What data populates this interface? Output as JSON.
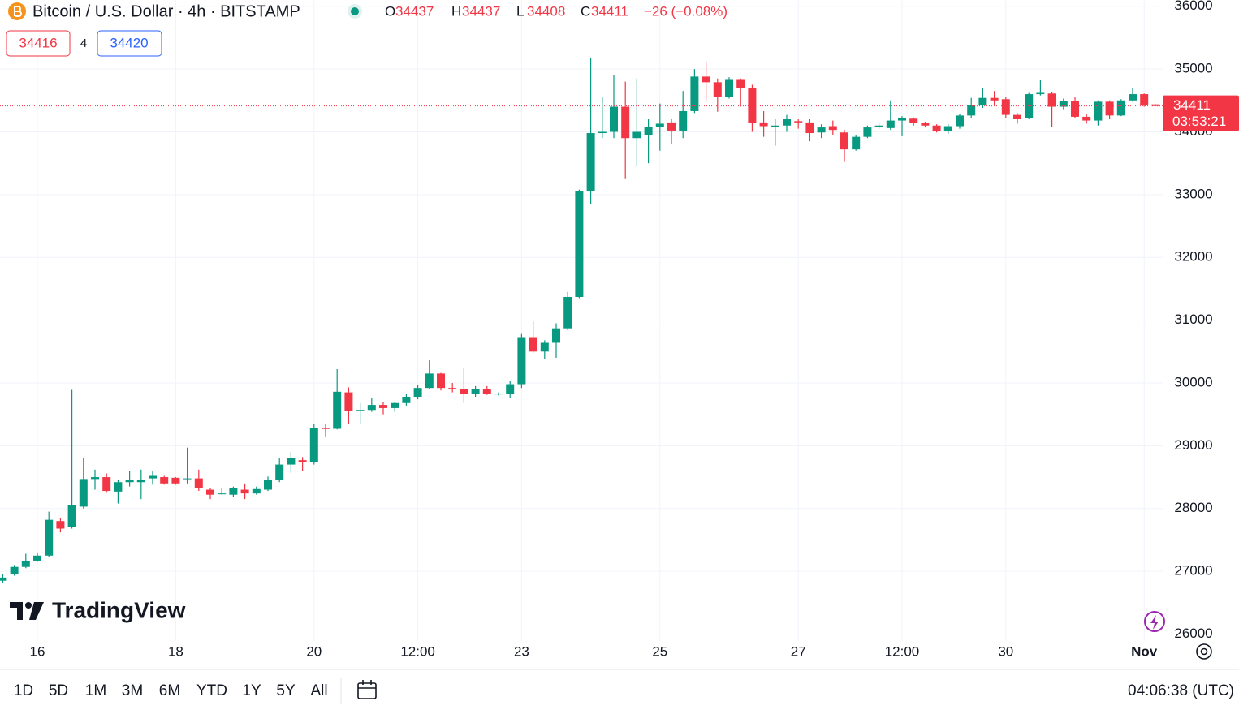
{
  "header": {
    "title": "Bitcoin / U.S. Dollar · 4h · BITSTAMP",
    "ohlc": [
      {
        "label": "O",
        "value": 34437
      },
      {
        "label": "H",
        "value": 34437
      },
      {
        "label": "L",
        "value": 34408
      },
      {
        "label": "C",
        "value": 34411
      }
    ],
    "change": "−26 (−0.08%)",
    "bid": 34416,
    "spread": 4,
    "ask": 34420
  },
  "logo": "TradingView",
  "chart_data": {
    "type": "candlestick",
    "up_color": "#089981",
    "down_color": "#f23645",
    "grid": true,
    "categories": [
      null,
      null,
      null,
      "16",
      null,
      null,
      null,
      null,
      null,
      null,
      null,
      null,
      null,
      null,
      null,
      "18",
      null,
      null,
      null,
      null,
      null,
      null,
      null,
      null,
      null,
      null,
      null,
      "20",
      null,
      null,
      null,
      null,
      null,
      null,
      null,
      null,
      "12:00",
      null,
      null,
      null,
      null,
      null,
      null,
      null,
      null,
      "23",
      null,
      null,
      null,
      null,
      null,
      null,
      null,
      null,
      null,
      null,
      null,
      "25",
      null,
      null,
      null,
      null,
      null,
      null,
      null,
      null,
      null,
      null,
      null,
      "27",
      null,
      null,
      null,
      null,
      null,
      null,
      null,
      null,
      "12:00",
      null,
      null,
      null,
      null,
      null,
      null,
      null,
      null,
      "30",
      null,
      null,
      null,
      null,
      null,
      null,
      null,
      null,
      null,
      null,
      null,
      "Nov",
      null
    ],
    "open": [
      26850,
      26950,
      27070,
      27170,
      27250,
      27800,
      27700,
      28030,
      28470,
      28500,
      28270,
      28420,
      28420,
      28480,
      28500,
      28490,
      28470,
      28480,
      28300,
      28230,
      28220,
      28300,
      28240,
      28300,
      28450,
      28700,
      28770,
      28740,
      29280,
      29270,
      29850,
      29550,
      29570,
      29650,
      29600,
      29680,
      29780,
      29920,
      30150,
      29920,
      29900,
      29830,
      29900,
      29820,
      29830,
      29980,
      30730,
      30500,
      30640,
      30870,
      31370,
      33050,
      33980,
      34000,
      34400,
      33900,
      33950,
      34080,
      34150,
      34020,
      34330,
      34880,
      34790,
      34550,
      34840,
      34700,
      34150,
      34080,
      34100,
      34170,
      34150,
      33990,
      34090,
      33990,
      33720,
      33920,
      34080,
      34060,
      34180,
      34210,
      34140,
      34100,
      34010,
      34090,
      34260,
      34430,
      34540,
      34520,
      34270,
      34220,
      34600,
      34610,
      34400,
      34490,
      34240,
      34180,
      34480,
      34260,
      34500,
      34600,
      34437
    ],
    "high": [
      26950,
      27100,
      27280,
      27300,
      27950,
      27850,
      29890,
      28800,
      28620,
      28560,
      28450,
      28600,
      28620,
      28600,
      28520,
      28500,
      28970,
      28620,
      28330,
      28330,
      28350,
      28400,
      28350,
      28510,
      28800,
      28900,
      28820,
      29350,
      29350,
      30220,
      29930,
      29680,
      29760,
      29700,
      29700,
      29820,
      29970,
      30360,
      30160,
      30000,
      30240,
      29950,
      29950,
      29850,
      30030,
      30780,
      30980,
      30680,
      30950,
      31450,
      33080,
      35170,
      34550,
      34900,
      34800,
      34850,
      34200,
      34450,
      34200,
      34650,
      35000,
      35120,
      34850,
      34870,
      34850,
      34750,
      34330,
      34200,
      34270,
      34200,
      34200,
      34120,
      34180,
      34030,
      33950,
      34100,
      34130,
      34500,
      34250,
      34230,
      34160,
      34120,
      34120,
      34280,
      34540,
      34700,
      34650,
      34550,
      34300,
      34620,
      34820,
      34640,
      34530,
      34560,
      34290,
      34500,
      34500,
      34520,
      34700,
      34610,
      34437
    ],
    "low": [
      26820,
      26930,
      27050,
      27150,
      27230,
      27620,
      27680,
      28000,
      28300,
      28250,
      28080,
      28350,
      28150,
      28380,
      28380,
      28380,
      28400,
      28280,
      28150,
      28220,
      28180,
      28150,
      28220,
      28280,
      28420,
      28570,
      28600,
      28700,
      29150,
      29260,
      29350,
      29350,
      29540,
      29500,
      29540,
      29640,
      29740,
      29900,
      29880,
      29850,
      29680,
      29780,
      29810,
      29800,
      29760,
      29920,
      30480,
      30380,
      30400,
      30840,
      31350,
      32850,
      33900,
      33900,
      33260,
      33450,
      33500,
      33700,
      33800,
      33900,
      34300,
      34500,
      34320,
      34530,
      34400,
      34000,
      33920,
      33780,
      34000,
      34050,
      33850,
      33900,
      33950,
      33520,
      33700,
      33900,
      34050,
      34030,
      33930,
      34100,
      34080,
      33990,
      33970,
      34050,
      34220,
      34380,
      34420,
      34220,
      34130,
      34200,
      34580,
      34080,
      34360,
      34220,
      34130,
      34100,
      34200,
      34250,
      34480,
      34400,
      34408
    ],
    "close": [
      26900,
      27070,
      27170,
      27250,
      27820,
      27680,
      28050,
      28470,
      28500,
      28280,
      28420,
      28450,
      28460,
      28520,
      28400,
      28400,
      28480,
      28320,
      28220,
      28240,
      28320,
      28240,
      28310,
      28450,
      28700,
      28800,
      28740,
      29280,
      29270,
      29860,
      29560,
      29570,
      29650,
      29600,
      29680,
      29780,
      29920,
      30150,
      29920,
      29900,
      29820,
      29900,
      29820,
      29830,
      29980,
      30730,
      30500,
      30640,
      30870,
      31370,
      33050,
      33980,
      34000,
      34400,
      33900,
      34000,
      34080,
      34130,
      34020,
      34330,
      34880,
      34790,
      34560,
      34840,
      34700,
      34140,
      34090,
      34100,
      34200,
      34150,
      33980,
      34070,
      34030,
      33720,
      33920,
      34070,
      34100,
      34180,
      34220,
      34140,
      34100,
      34010,
      34090,
      34260,
      34430,
      34540,
      34500,
      34270,
      34200,
      34600,
      34620,
      34400,
      34490,
      34240,
      34180,
      34480,
      34260,
      34500,
      34600,
      34420,
      34411
    ],
    "ylim": [
      25890,
      36100
    ],
    "yticks": [
      26000,
      27000,
      28000,
      29000,
      30000,
      31000,
      32000,
      33000,
      34000,
      35000,
      36000
    ],
    "last_price": 34411,
    "countdown": "03:53:21"
  },
  "toolbar": {
    "ranges": [
      "1D",
      "5D",
      "1M",
      "3M",
      "6M",
      "YTD",
      "1Y",
      "5Y",
      "All"
    ],
    "clock": "04:06:38 (UTC)"
  }
}
